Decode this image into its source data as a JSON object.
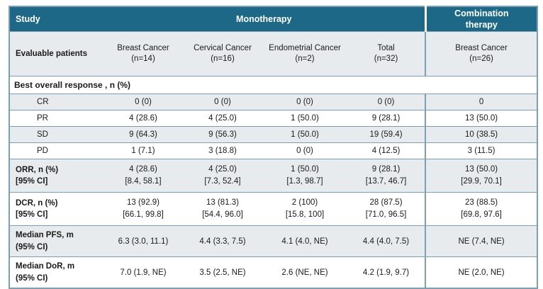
{
  "colors": {
    "header_bg": "#1d6886",
    "header_text": "#ffffff",
    "row_alt_bg": "#e8ebed",
    "row_bg": "#ffffff",
    "border": "#7b9fb5",
    "text": "#1a1a1a"
  },
  "header": {
    "study": "Study",
    "monotherapy": "Monotherapy",
    "combination": "Combination therapy"
  },
  "subheader": {
    "label": "Evaluable patients",
    "cols": [
      {
        "name": "Breast Cancer",
        "n": "(n=14)"
      },
      {
        "name": "Cervical Cancer",
        "n": "(n=16)"
      },
      {
        "name": "Endometrial Cancer",
        "n": "(n=2)"
      },
      {
        "name": "Total",
        "n": "(n=32)"
      },
      {
        "name": "Breast Cancer",
        "n": "(n=26)"
      }
    ]
  },
  "section": {
    "label": "Best overall response , n (%)"
  },
  "response_rows": [
    {
      "label": "CR",
      "values": [
        "0 (0)",
        "0 (0)",
        "0 (0)",
        "0 (0)",
        "0"
      ]
    },
    {
      "label": "PR",
      "values": [
        "4 (28.6)",
        "4 (25.0)",
        "1 (50.0)",
        "9 (28.1)",
        "13 (50.0)"
      ]
    },
    {
      "label": "SD",
      "values": [
        "9 (64.3)",
        "9 (56.3)",
        "1 (50.0)",
        "19 (59.4)",
        "10 (38.5)"
      ]
    },
    {
      "label": "PD",
      "values": [
        "1 (7.1)",
        "3 (18.8)",
        "0 (0)",
        "4 (12.5)",
        "3 (11.5)"
      ]
    }
  ],
  "stat_rows": [
    {
      "label1": "ORR, n (%)",
      "label2": "[95% CI]",
      "values": [
        [
          "4 (28.6)",
          "[8.4, 58.1]"
        ],
        [
          "4 (25.0)",
          "[7.3, 52.4]"
        ],
        [
          "1 (50.0)",
          "[1.3, 98.7]"
        ],
        [
          "9 (28.1)",
          "[13.7, 46.7]"
        ],
        [
          "13 (50.0)",
          "[29.9, 70.1]"
        ]
      ]
    },
    {
      "label1": "DCR, n (%)",
      "label2": "[95% CI]",
      "values": [
        [
          "13 (92.9)",
          "[66.1, 99.8]"
        ],
        [
          "13 (81.3)",
          "[54.4, 96.0]"
        ],
        [
          "2 (100)",
          "[15.8, 100]"
        ],
        [
          "28 (87.5)",
          "[71.0, 96.5]"
        ],
        [
          "23 (88.5)",
          "[69.8, 97.6]"
        ]
      ]
    }
  ],
  "median_rows": [
    {
      "label1": "Median PFS, m",
      "label2": "(95% CI)",
      "values": [
        "6.3 (3.0, 11.1)",
        "4.4 (3.3, 7.5)",
        "4.1 (4.0, NE)",
        "4.4 (4.0, 7.5)",
        "NE (7.4, NE)"
      ]
    },
    {
      "label1": "Median DoR, m",
      "label2": "(95% CI)",
      "values": [
        "7.0 (1.9, NE)",
        "3.5 (2.5, NE)",
        "2.6 (NE, NE)",
        "4.2 (1.9, 9.7)",
        "NE (2.0, NE)"
      ]
    }
  ]
}
